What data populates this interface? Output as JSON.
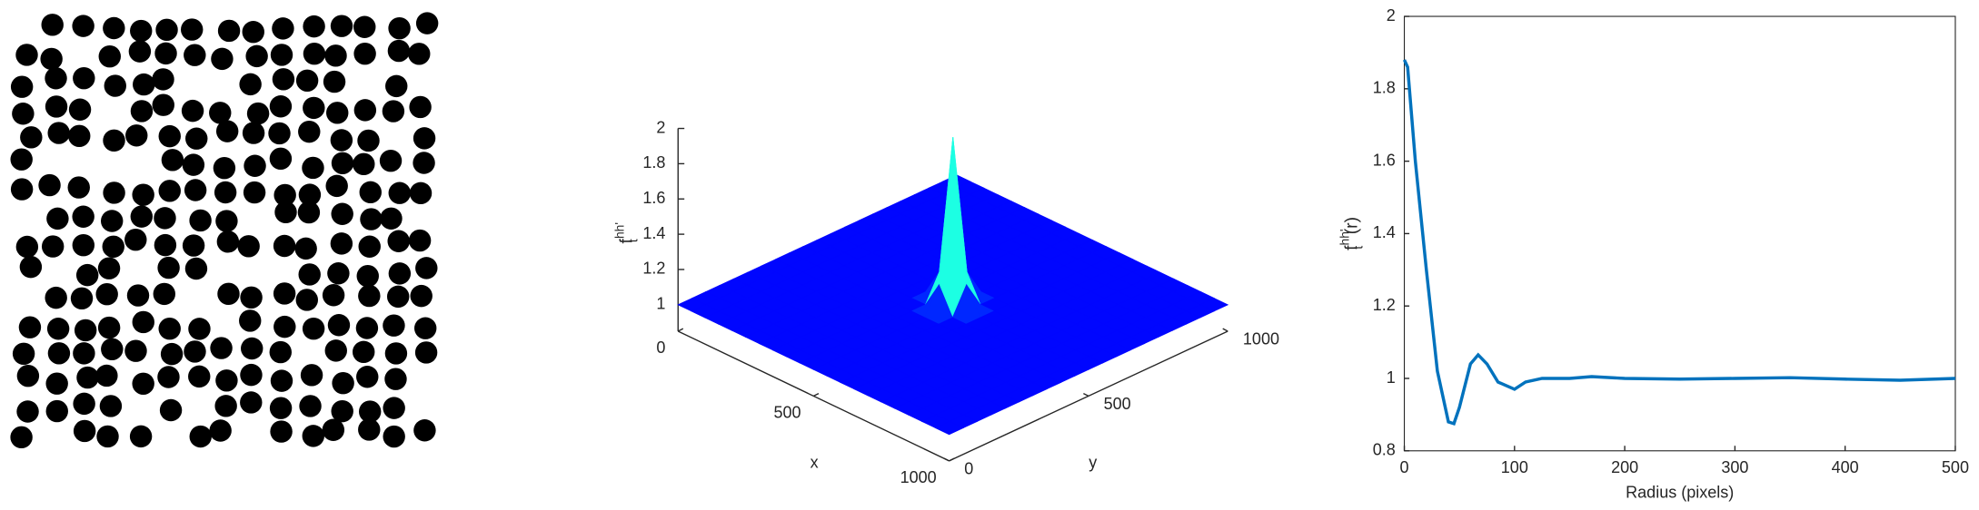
{
  "chart_data": [
    {
      "type": "surface",
      "colormap": "jet",
      "xlabel": "x",
      "ylabel": "y",
      "zlabel": {
        "base": "f",
        "sup": "hh'",
        "sub": "t"
      },
      "xlim": [
        0,
        1000
      ],
      "ylim": [
        0,
        1000
      ],
      "zlim": [
        0.85,
        2
      ],
      "xticks": [
        0,
        500,
        1000
      ],
      "yticks": [
        0,
        500,
        1000
      ],
      "zticks": [
        1,
        1.2,
        1.4,
        1.6,
        1.8,
        2
      ],
      "x": [
        0,
        50,
        100,
        150,
        200,
        250,
        300,
        350,
        400,
        450,
        500,
        550,
        600,
        650,
        700,
        750,
        800,
        850,
        900,
        950,
        1000
      ],
      "y": [
        0,
        50,
        100,
        150,
        200,
        250,
        300,
        350,
        400,
        450,
        500,
        550,
        600,
        650,
        700,
        750,
        800,
        850,
        900,
        950,
        1000
      ],
      "z": [
        [
          1,
          1,
          1,
          1,
          1,
          1,
          1,
          1,
          1,
          1,
          1,
          1,
          1,
          1,
          1,
          1,
          1,
          1,
          1,
          1,
          1
        ],
        [
          1,
          1,
          1,
          1,
          1,
          1,
          1,
          1,
          1,
          1,
          1,
          1,
          1,
          1,
          1,
          1,
          1,
          1,
          1,
          1,
          1
        ],
        [
          1,
          1,
          1,
          1,
          1,
          1,
          1,
          1,
          1,
          1,
          1,
          1,
          1,
          1,
          1,
          1,
          1,
          1,
          1,
          1,
          1
        ],
        [
          1,
          1,
          1,
          1,
          1,
          1,
          1,
          1,
          1,
          1,
          1,
          1,
          1,
          1,
          1,
          1,
          1,
          1,
          1,
          1,
          1
        ],
        [
          1,
          1,
          1,
          1,
          1,
          1,
          1,
          1,
          1,
          1,
          1,
          1,
          1,
          1,
          1,
          1,
          1,
          1,
          1,
          1,
          1
        ],
        [
          1,
          1,
          1,
          1,
          1,
          1,
          1,
          1,
          1,
          1,
          1,
          1,
          1,
          1,
          1,
          1,
          1,
          1,
          1,
          1,
          1
        ],
        [
          1,
          1,
          1,
          1,
          1,
          1,
          1,
          1,
          1,
          1,
          1,
          1,
          1,
          1,
          1,
          1,
          1,
          1,
          1,
          1,
          1
        ],
        [
          1,
          1,
          1,
          1,
          1,
          1,
          1,
          1,
          1,
          1,
          1,
          1,
          1,
          1,
          1,
          1,
          1,
          1,
          1,
          1,
          1
        ],
        [
          1,
          1,
          1,
          1,
          1,
          1,
          1,
          1,
          1,
          1,
          1,
          1,
          1,
          1,
          1,
          1,
          1,
          1,
          1,
          1,
          1
        ],
        [
          1,
          1,
          1,
          1,
          1,
          1,
          1,
          1,
          1,
          1,
          1.15,
          1,
          1,
          1,
          1,
          1,
          1,
          1,
          1,
          1,
          1
        ],
        [
          1,
          1,
          1,
          1,
          1,
          1,
          1,
          1,
          1,
          1.15,
          1.95,
          1.15,
          1,
          1,
          1,
          1,
          1,
          1,
          1,
          1,
          1
        ],
        [
          1,
          1,
          1,
          1,
          1,
          1,
          1,
          1,
          1,
          1,
          1.15,
          1,
          1,
          1,
          1,
          1,
          1,
          1,
          1,
          1,
          1
        ],
        [
          1,
          1,
          1,
          1,
          1,
          1,
          1,
          1,
          1,
          1,
          1,
          1,
          1,
          1,
          1,
          1,
          1,
          1,
          1,
          1,
          1
        ],
        [
          1,
          1,
          1,
          1,
          1,
          1,
          1,
          1,
          1,
          1,
          1,
          1,
          1,
          1,
          1,
          1,
          1,
          1,
          1,
          1,
          1
        ],
        [
          1,
          1,
          1,
          1,
          1,
          1,
          1,
          1,
          1,
          1,
          1,
          1,
          1,
          1,
          1,
          1,
          1,
          1,
          1,
          1,
          1
        ],
        [
          1,
          1,
          1,
          1,
          1,
          1,
          1,
          1,
          1,
          1,
          1,
          1,
          1,
          1,
          1,
          1,
          1,
          1,
          1,
          1,
          1
        ],
        [
          1,
          1,
          1,
          1,
          1,
          1,
          1,
          1,
          1,
          1,
          1,
          1,
          1,
          1,
          1,
          1,
          1,
          1,
          1,
          1,
          1
        ],
        [
          1,
          1,
          1,
          1,
          1,
          1,
          1,
          1,
          1,
          1,
          1,
          1,
          1,
          1,
          1,
          1,
          1,
          1,
          1,
          1,
          1
        ],
        [
          1,
          1,
          1,
          1,
          1,
          1,
          1,
          1,
          1,
          1,
          1,
          1,
          1,
          1,
          1,
          1,
          1,
          1,
          1,
          1,
          1
        ],
        [
          1,
          1,
          1,
          1,
          1,
          1,
          1,
          1,
          1,
          1,
          1,
          1,
          1,
          1,
          1,
          1,
          1,
          1,
          1,
          1,
          1
        ],
        [
          1,
          1,
          1,
          1,
          1,
          1,
          1,
          1,
          1,
          1,
          1,
          1,
          1,
          1,
          1,
          1,
          1,
          1,
          1,
          1,
          1
        ]
      ]
    },
    {
      "type": "line",
      "xlabel": "Radius (pixels)",
      "ylabel": {
        "base": "f",
        "sup": "hh'",
        "sub": "t",
        "suffix": "(r)"
      },
      "xlim": [
        0,
        500
      ],
      "ylim": [
        0.8,
        2
      ],
      "xticks": [
        0,
        100,
        200,
        300,
        400,
        500
      ],
      "yticks": [
        0.8,
        1,
        1.2,
        1.4,
        1.6,
        1.8,
        2
      ],
      "series": [
        {
          "color": "#0072bd",
          "x": [
            0,
            3,
            10,
            20,
            30,
            40,
            45,
            50,
            60,
            67,
            75,
            85,
            100,
            110,
            125,
            150,
            170,
            200,
            250,
            300,
            350,
            400,
            450,
            500
          ],
          "values": [
            1.88,
            1.86,
            1.6,
            1.3,
            1.02,
            0.88,
            0.875,
            0.92,
            1.04,
            1.065,
            1.04,
            0.99,
            0.97,
            0.99,
            1.0,
            1.0,
            1.005,
            1.0,
            0.998,
            1.0,
            1.002,
            0.998,
            0.995,
            1.0
          ]
        }
      ]
    }
  ]
}
